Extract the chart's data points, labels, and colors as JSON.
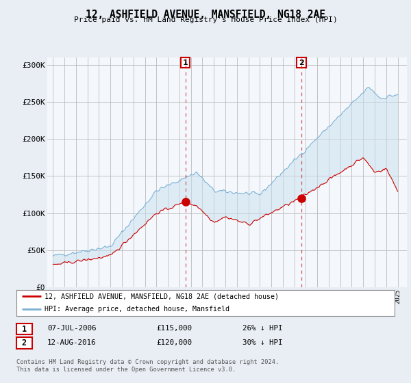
{
  "title": "12, ASHFIELD AVENUE, MANSFIELD, NG18 2AE",
  "subtitle": "Price paid vs. HM Land Registry's House Price Index (HPI)",
  "legend_line1": "12, ASHFIELD AVENUE, MANSFIELD, NG18 2AE (detached house)",
  "legend_line2": "HPI: Average price, detached house, Mansfield",
  "annotation1_date": "07-JUL-2006",
  "annotation1_price": "£115,000",
  "annotation1_hpi": "26% ↓ HPI",
  "annotation1_year": 2006.52,
  "annotation1_value": 115000,
  "annotation2_date": "12-AUG-2016",
  "annotation2_price": "£120,000",
  "annotation2_hpi": "30% ↓ HPI",
  "annotation2_year": 2016.62,
  "annotation2_value": 120000,
  "hpi_color": "#7ab0d4",
  "price_color": "#cc0000",
  "fill_color": "#c8dff0",
  "background_color": "#e8eef4",
  "plot_bg_color": "#f4f8fc",
  "ylim": [
    0,
    310000
  ],
  "yticks": [
    0,
    50000,
    100000,
    150000,
    200000,
    250000,
    300000
  ],
  "footer": "Contains HM Land Registry data © Crown copyright and database right 2024.\nThis data is licensed under the Open Government Licence v3.0."
}
